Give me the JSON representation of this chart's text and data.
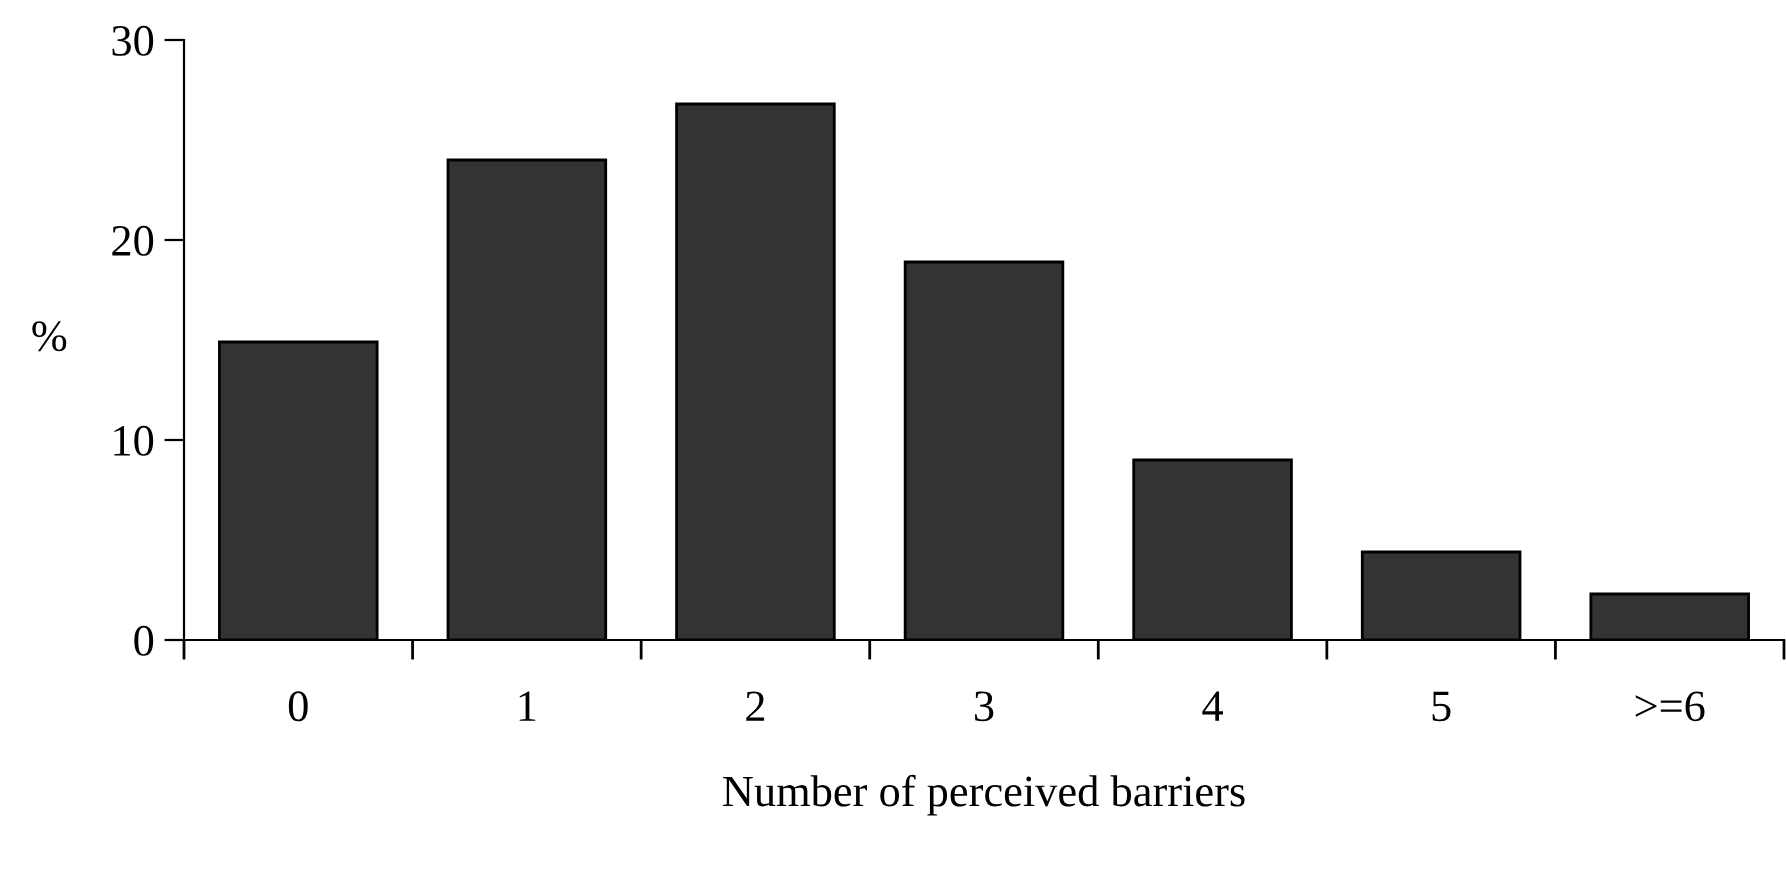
{
  "chart_data": {
    "type": "bar",
    "xlabel": "Number of perceived barriers",
    "ylabel": "%",
    "categories": [
      "0",
      "1",
      "2",
      "3",
      "4",
      "5",
      ">=6"
    ],
    "values": [
      14.9,
      24,
      26.8,
      18.9,
      9,
      4.4,
      2.3
    ],
    "color": "#333333",
    "ylim": [
      0,
      30
    ],
    "yticks": [
      0,
      10,
      20,
      30
    ],
    "grid": false,
    "legend": false
  }
}
